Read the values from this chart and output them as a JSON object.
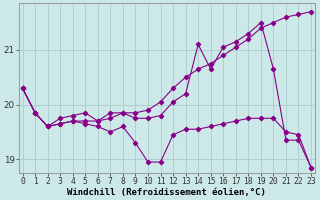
{
  "line1_x": [
    0,
    1,
    2,
    3,
    4,
    5,
    6,
    7,
    8,
    9,
    10,
    11,
    12,
    13,
    14,
    15,
    16,
    17,
    18,
    19,
    20,
    21,
    22,
    23
  ],
  "line1_y": [
    20.3,
    19.85,
    19.6,
    19.75,
    19.8,
    19.85,
    19.7,
    19.85,
    19.85,
    19.75,
    19.75,
    19.8,
    20.05,
    20.2,
    21.1,
    20.65,
    21.05,
    21.15,
    21.3,
    21.5,
    20.65,
    19.35,
    19.35,
    18.85
  ],
  "line2_x": [
    0,
    1,
    2,
    3,
    4,
    5,
    6,
    7,
    8,
    9,
    10,
    11,
    12,
    13,
    14,
    15,
    16,
    17,
    18,
    19,
    20,
    21,
    22,
    23
  ],
  "line2_y": [
    20.3,
    19.85,
    19.6,
    19.65,
    19.7,
    19.65,
    19.6,
    19.5,
    19.6,
    19.3,
    18.95,
    18.95,
    19.45,
    19.55,
    19.55,
    19.6,
    19.65,
    19.7,
    19.75,
    19.75,
    19.75,
    19.5,
    19.45,
    18.85
  ],
  "line3_x": [
    0,
    1,
    2,
    3,
    4,
    5,
    6,
    7,
    8,
    9,
    10,
    11,
    12,
    13,
    14,
    15,
    16,
    17,
    18,
    19,
    20,
    21,
    22,
    23
  ],
  "line3_y": [
    20.3,
    19.85,
    19.6,
    19.65,
    19.7,
    19.7,
    19.7,
    19.75,
    19.85,
    19.85,
    19.9,
    20.05,
    20.3,
    20.5,
    20.65,
    20.75,
    20.9,
    21.05,
    21.2,
    21.4,
    21.5,
    21.6,
    21.65,
    21.7
  ],
  "line_color": "#880088",
  "bg_color": "#cce8e8",
  "grid_color": "#aacccc",
  "xlabel": "Windchill (Refroidissement éolien,°C)",
  "yticks": [
    19,
    20,
    21
  ],
  "xticks": [
    0,
    1,
    2,
    3,
    4,
    5,
    6,
    7,
    8,
    9,
    10,
    11,
    12,
    13,
    14,
    15,
    16,
    17,
    18,
    19,
    20,
    21,
    22,
    23
  ],
  "xlim": [
    -0.3,
    23.3
  ],
  "ylim": [
    18.75,
    21.85
  ],
  "xlabel_fontsize": 6.5,
  "tick_fontsize": 5.8,
  "figwidth": 3.2,
  "figheight": 2.0,
  "dpi": 100
}
